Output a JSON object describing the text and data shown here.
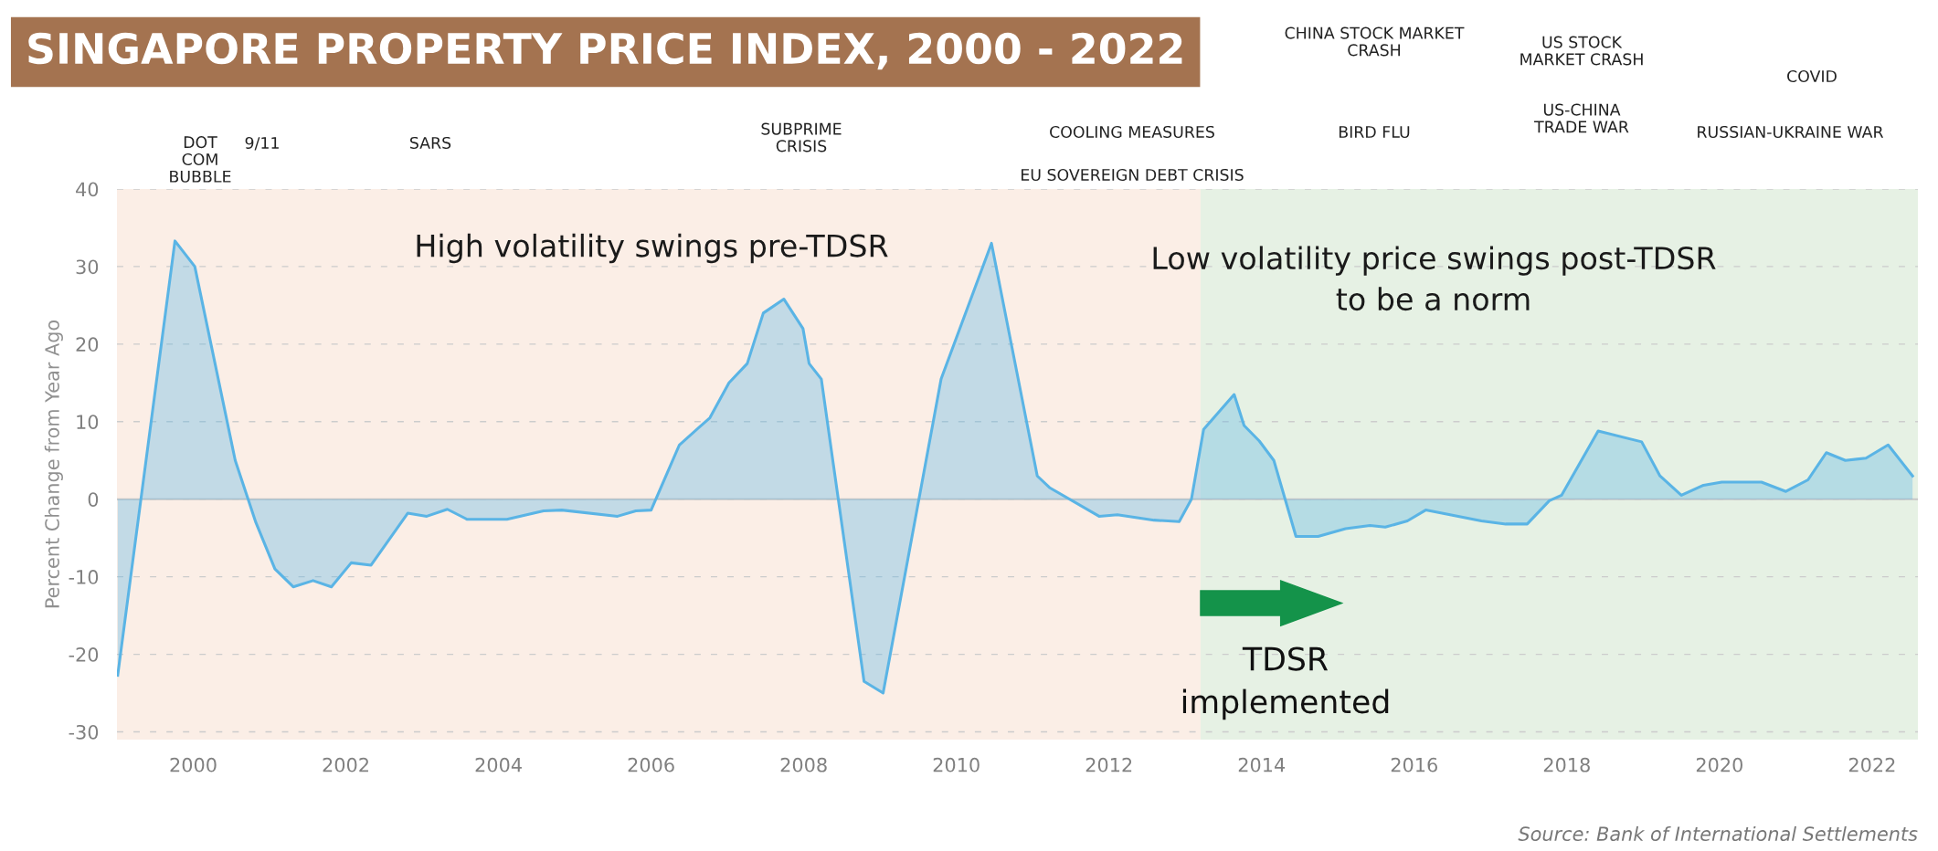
{
  "chart_data": {
    "type": "area",
    "title": "SINGAPORE PROPERTY PRICE INDEX, 2000 - 2022",
    "ylabel": "Percent Change from Year Ago",
    "series": [
      {
        "color": "#5ab4e5",
        "x": [
          1999.01,
          1999.76,
          2000.02,
          2000.55,
          2000.82,
          2001.07,
          2001.31,
          2001.57,
          2001.81,
          2002.07,
          2002.33,
          2002.81,
          2003.06,
          2003.33,
          2003.59,
          2004.11,
          2004.59,
          2004.83,
          2005.56,
          2005.8,
          2006.0,
          2006.37,
          2006.77,
          2007.02,
          2007.26,
          2007.47,
          2007.74,
          2007.99,
          2008.07,
          2008.23,
          2008.79,
          2009.04,
          2009.8,
          2010.46,
          2011.06,
          2011.22,
          2011.87,
          2012.11,
          2012.59,
          2012.92,
          2013.08,
          2013.24,
          2013.64,
          2013.77,
          2013.97,
          2014.16,
          2014.45,
          2014.74,
          2015.1,
          2015.42,
          2015.62,
          2015.91,
          2016.15,
          2016.47,
          2016.88,
          2017.2,
          2017.48,
          2017.77,
          2017.93,
          2018.41,
          2018.98,
          2019.22,
          2019.5,
          2019.79,
          2020.03,
          2020.55,
          2020.87,
          2021.16,
          2021.4,
          2021.65,
          2021.92,
          2022.21,
          2022.53
        ],
        "values": [
          -22.7,
          33.3,
          30,
          5,
          -3,
          -9,
          -11.3,
          -10.5,
          -11.3,
          -8.2,
          -8.5,
          -1.8,
          -2.2,
          -1.3,
          -2.6,
          -2.6,
          -1.5,
          -1.4,
          -2.2,
          -1.5,
          -1.4,
          7,
          10.5,
          15,
          17.5,
          24,
          25.8,
          22,
          17.5,
          15.5,
          -23.5,
          -25,
          15.5,
          33,
          3,
          1.5,
          -2.2,
          -2,
          -2.7,
          -2.9,
          0,
          9,
          13.5,
          9.5,
          7.5,
          5,
          -4.8,
          -4.8,
          -3.8,
          -3.4,
          -3.6,
          -2.8,
          -1.4,
          -2,
          -2.8,
          -3.2,
          -3.2,
          -0.2,
          0.5,
          8.8,
          7.4,
          3,
          0.5,
          1.8,
          2.2,
          2.2,
          1,
          2.5,
          6,
          5,
          5.3,
          7,
          3
        ]
      }
    ],
    "xlim": [
      1999.0,
      2022.6
    ],
    "xticks": [
      2000,
      2002,
      2004,
      2006,
      2008,
      2010,
      2012,
      2014,
      2016,
      2018,
      2020,
      2022
    ],
    "ylim": [
      -31,
      40
    ],
    "yticks": [
      -30,
      -20,
      -10,
      0,
      10,
      20,
      30,
      40
    ],
    "grid": "y",
    "ref_lines": [
      {
        "axis": "y",
        "value": 0,
        "color": "#c8c8c8",
        "line_style": "solid"
      }
    ],
    "bands": [
      {
        "axis": "x",
        "from": 1999.0,
        "to": 2013.2,
        "label": "High volatility swings pre-TDSR",
        "color": "#fbeee6"
      },
      {
        "axis": "x",
        "from": 2013.2,
        "to": 2022.6,
        "label": "Low volatility price swings post-TDSR\nto be a norm",
        "color": "#e6f1e4"
      }
    ],
    "annotations": [
      "DOT\nCOM\nBUBBLE",
      "9/11",
      "SARS",
      "SUBPRIME\nCRISIS",
      "COOLING MEASURES",
      "EU SOVEREIGN DEBT CRISIS",
      "CHINA STOCK MARKET\nCRASH",
      "BIRD FLU",
      "US STOCK\nMARKET CRASH",
      "US-CHINA\nTRADE WAR",
      "COVID",
      "RUSSIAN-UKRAINE WAR",
      "TDSR\nimplemented",
      "Source: Bank of International Settlements"
    ]
  }
}
